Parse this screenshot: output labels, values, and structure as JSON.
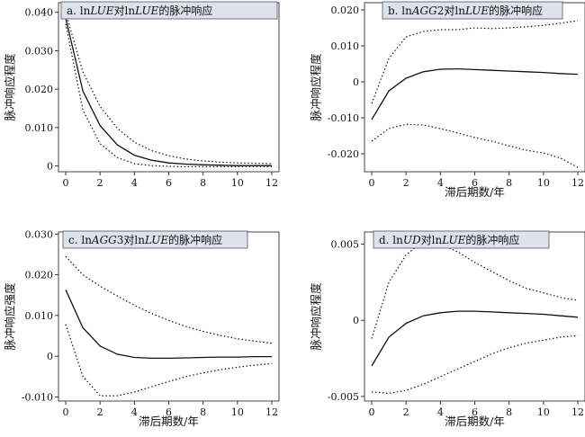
{
  "chart_data": [
    {
      "type": "line",
      "title": "a. ln<i>LUE</i>对ln<i>LUE</i>的脉冲响应",
      "xlabel": "",
      "ylabel": "脉冲响应程度",
      "xlim": [
        0,
        12
      ],
      "ylim": [
        -0.0015,
        0.0425
      ],
      "xticks": [
        0,
        2,
        4,
        6,
        8,
        10,
        12
      ],
      "yticks": [
        0,
        0.01,
        0.02,
        0.03,
        0.04
      ],
      "ytick_labels": [
        "0",
        "0.010",
        "0.020",
        "0.030",
        "0.040"
      ],
      "x": [
        0,
        1,
        2,
        3,
        4,
        5,
        6,
        7,
        8,
        9,
        10,
        11,
        12
      ],
      "series": [
        {
          "name": "",
          "style": "solid",
          "values": [
            0.0385,
            0.0195,
            0.0105,
            0.0055,
            0.0028,
            0.0015,
            0.0008,
            0.0005,
            0.0003,
            0.0002,
            0.0001,
            0.0001,
            0.0001
          ]
        },
        {
          "name": "",
          "style": "dotted",
          "values": [
            0.0398,
            0.0245,
            0.0155,
            0.0098,
            0.0062,
            0.004,
            0.0027,
            0.0018,
            0.0013,
            0.001,
            0.0008,
            0.0007,
            0.0006
          ]
        },
        {
          "name": "",
          "style": "dotted",
          "values": [
            0.037,
            0.0145,
            0.0058,
            0.0022,
            0.0006,
            0.0001,
            -0.0001,
            -0.0002,
            -0.0002,
            -0.0002,
            -0.0002,
            -0.0002,
            -0.0002
          ]
        }
      ]
    },
    {
      "type": "line",
      "title": "b. ln<i>AGG</i>2对ln<i>LUE</i>的脉冲响应",
      "xlabel": "滞后期数/年",
      "ylabel": "脉冲响应程度",
      "xlim": [
        0,
        12
      ],
      "ylim": [
        -0.025,
        0.022
      ],
      "xticks": [
        0,
        2,
        4,
        6,
        8,
        10,
        12
      ],
      "yticks": [
        -0.02,
        -0.01,
        0,
        0.01,
        0.02
      ],
      "ytick_labels": [
        "-0.020",
        "-0.010",
        "0",
        "0.010",
        "0.020"
      ],
      "x": [
        0,
        1,
        2,
        3,
        4,
        5,
        6,
        7,
        8,
        9,
        10,
        11,
        12
      ],
      "series": [
        {
          "name": "",
          "style": "solid",
          "values": [
            -0.0105,
            -0.0025,
            0.001,
            0.0028,
            0.0035,
            0.0036,
            0.0034,
            0.0032,
            0.003,
            0.0028,
            0.0026,
            0.0023,
            0.0021
          ]
        },
        {
          "name": "",
          "style": "dotted",
          "values": [
            -0.006,
            0.0065,
            0.0125,
            0.014,
            0.0145,
            0.0145,
            0.015,
            0.0148,
            0.015,
            0.0153,
            0.0157,
            0.0163,
            0.017
          ]
        },
        {
          "name": "",
          "style": "dotted",
          "values": [
            -0.0165,
            -0.013,
            -0.0118,
            -0.012,
            -0.013,
            -0.0142,
            -0.0155,
            -0.0165,
            -0.0178,
            -0.019,
            -0.0198,
            -0.0212,
            -0.0238
          ]
        }
      ]
    },
    {
      "type": "line",
      "title": "c. ln<i>AGG</i>3对ln<i>LUE</i>的脉冲响应",
      "xlabel": "滞后期数/年",
      "ylabel": "脉冲响应强度",
      "xlim": [
        0,
        12
      ],
      "ylim": [
        -0.011,
        0.0305
      ],
      "xticks": [
        0,
        2,
        4,
        6,
        8,
        10,
        12
      ],
      "yticks": [
        -0.01,
        0,
        0.01,
        0.02,
        0.03
      ],
      "ytick_labels": [
        "-0.010",
        "0",
        "0.010",
        "0.020",
        "0.030"
      ],
      "x": [
        0,
        1,
        2,
        3,
        4,
        5,
        6,
        7,
        8,
        9,
        10,
        11,
        12
      ],
      "series": [
        {
          "name": "",
          "style": "solid",
          "values": [
            0.0163,
            0.007,
            0.0025,
            0.0005,
            -0.0003,
            -0.0005,
            -0.0005,
            -0.0004,
            -0.0003,
            -0.0002,
            -0.0002,
            -0.0001,
            -0.0001
          ]
        },
        {
          "name": "",
          "style": "dotted",
          "values": [
            0.0245,
            0.02,
            0.0172,
            0.0148,
            0.0125,
            0.0105,
            0.0088,
            0.0073,
            0.0061,
            0.0051,
            0.0043,
            0.0037,
            0.0032
          ]
        },
        {
          "name": "",
          "style": "dotted",
          "values": [
            0.0078,
            -0.005,
            -0.0097,
            -0.0097,
            -0.0088,
            -0.0075,
            -0.0062,
            -0.005,
            -0.0041,
            -0.0033,
            -0.0027,
            -0.0022,
            -0.0018
          ]
        }
      ]
    },
    {
      "type": "line",
      "title": "d. ln<i>UD</i>对ln<i>LUE</i>的脉冲响应",
      "xlabel": "滞后期数/年",
      "ylabel": "脉冲响应程度",
      "xlim": [
        0,
        12
      ],
      "ylim": [
        -0.0053,
        0.0058
      ],
      "xticks": [
        0,
        2,
        4,
        6,
        8,
        10,
        12
      ],
      "yticks": [
        -0.005,
        0,
        0.005
      ],
      "ytick_labels": [
        "-0.005",
        "0",
        "0.005"
      ],
      "x": [
        0,
        1,
        2,
        3,
        4,
        5,
        6,
        7,
        8,
        9,
        10,
        11,
        12
      ],
      "series": [
        {
          "name": "",
          "style": "solid",
          "values": [
            -0.003,
            -0.0011,
            -0.0002,
            0.0003,
            0.0005,
            0.0006,
            0.0006,
            0.00055,
            0.0005,
            0.00045,
            0.0004,
            0.0003,
            0.0002
          ]
        },
        {
          "name": "",
          "style": "dotted",
          "values": [
            -0.0012,
            0.0025,
            0.0043,
            0.0052,
            0.005,
            0.0045,
            0.0038,
            0.0032,
            0.0026,
            0.0021,
            0.0018,
            0.0015,
            0.0013
          ]
        },
        {
          "name": "",
          "style": "dotted",
          "values": [
            -0.0047,
            -0.0048,
            -0.0046,
            -0.0042,
            -0.0037,
            -0.0032,
            -0.0027,
            -0.0022,
            -0.0018,
            -0.0015,
            -0.0013,
            -0.0011,
            -0.001
          ]
        }
      ]
    }
  ]
}
